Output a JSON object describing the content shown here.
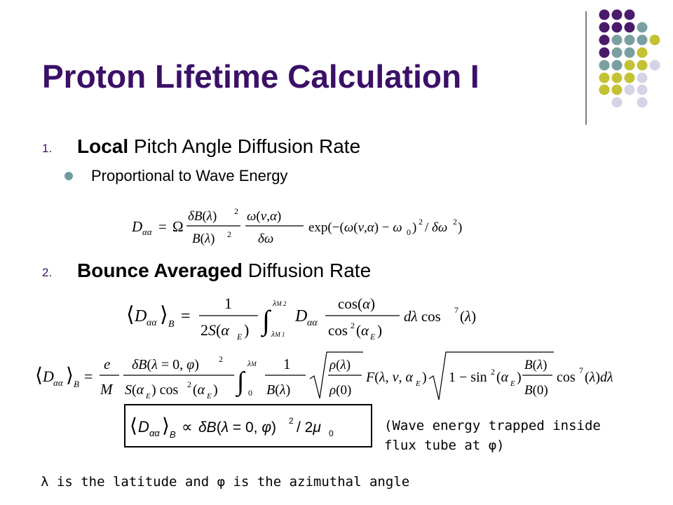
{
  "slide": {
    "title": "Proton Lifetime Calculation I",
    "items": [
      {
        "number": "1.",
        "bold": "Local",
        "rest": " Pitch Angle Diffusion Rate"
      },
      {
        "number": "2.",
        "bold": "Bounce Averaged",
        "rest": " Diffusion Rate"
      }
    ],
    "sub_bullet": "Proportional to Wave Energy",
    "note_line1": "(Wave energy trapped inside",
    "note_line2": "flux tube at φ)",
    "footer": "λ is the latitude and φ is the azimuthal angle",
    "colors": {
      "title": "#3b1067",
      "dot_purple": "#4a1a6b",
      "dot_teal": "#7a9fa0",
      "dot_olive": "#c3c233",
      "dot_lavender": "#d4d4e6"
    }
  }
}
